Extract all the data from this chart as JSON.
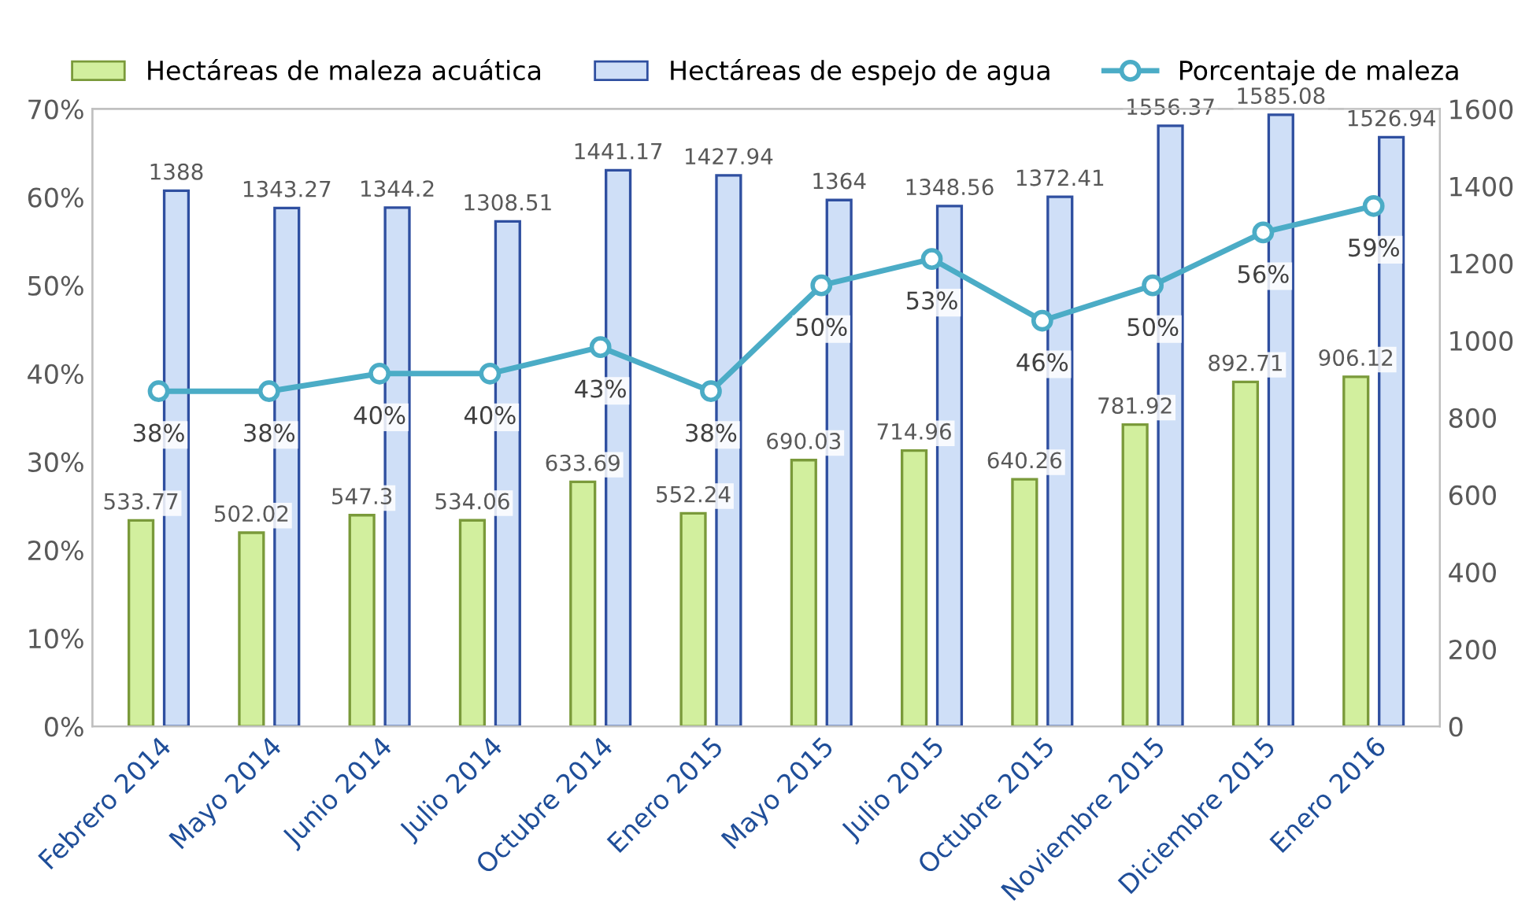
{
  "chart_data": {
    "type": "bar",
    "categories": [
      "Febrero 2014",
      "Mayo 2014",
      "Junio 2014",
      "Julio 2014",
      "Octubre 2014",
      "Enero 2015",
      "Mayo 2015",
      "Julio 2015",
      "Octubre 2015",
      "Noviembre 2015",
      "Diciembre 2015",
      "Enero 2016"
    ],
    "series": [
      {
        "name": "Hectáreas de maleza acuática",
        "axis": "y2",
        "color": "#d2ef9e",
        "values": [
          533.77,
          502.02,
          547.3,
          534.06,
          633.69,
          552.24,
          690.03,
          714.96,
          640.26,
          781.92,
          892.71,
          906.12
        ]
      },
      {
        "name": "Hectáreas de espejo de agua",
        "axis": "y2",
        "color": "#cfdff7",
        "values": [
          1388,
          1343.27,
          1344.2,
          1308.51,
          1441.17,
          1427.94,
          1364,
          1348.56,
          1372.41,
          1556.37,
          1585.08,
          1526.94
        ]
      },
      {
        "name": "Porcentaje de maleza",
        "type": "line",
        "axis": "y",
        "color": "#4bacc6",
        "marker": "circle",
        "values": [
          38,
          38,
          40,
          40,
          43,
          38,
          50,
          53,
          46,
          50,
          56,
          59
        ],
        "value_labels": [
          "38%",
          "38%",
          "40%",
          "40%",
          "43%",
          "38%",
          "50%",
          "53%",
          "46%",
          "50%",
          "56%",
          "59%"
        ]
      }
    ],
    "ylim": [
      0,
      70
    ],
    "yticks": [
      {
        "value": 0,
        "label": "0%"
      },
      {
        "value": 10,
        "label": "10%"
      },
      {
        "value": 20,
        "label": "20%"
      },
      {
        "value": 30,
        "label": "30%"
      },
      {
        "value": 40,
        "label": "40%"
      },
      {
        "value": 50,
        "label": "50%"
      },
      {
        "value": 60,
        "label": "60%"
      },
      {
        "value": 70,
        "label": "70%"
      }
    ],
    "y2lim": [
      0,
      1600
    ],
    "y2ticks": [
      0,
      200,
      400,
      600,
      800,
      1000,
      1200,
      1400,
      1600
    ],
    "data_labels": true,
    "legend": "top",
    "grid": false
  }
}
